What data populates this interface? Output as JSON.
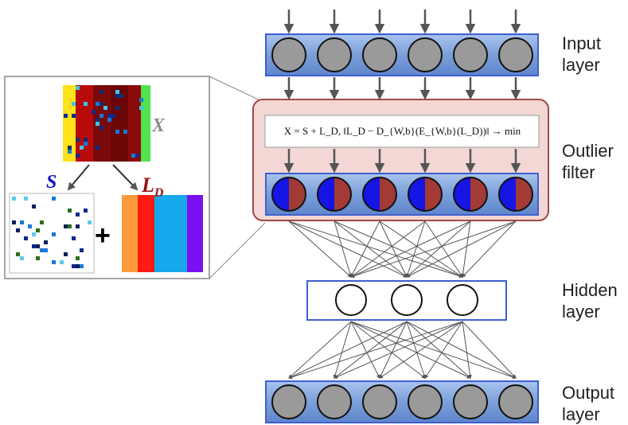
{
  "labels": {
    "input": "Input\nlayer",
    "outlier": "Outlier\nfilter",
    "hidden": "Hidden\nlayer",
    "output": "Output\nlayer"
  },
  "formula": "X = S + L_D, ‖L_D − D_{W,b}(E_{W,b}(L_D))‖ → min",
  "inset": {
    "x_label": "X",
    "s_label": "S",
    "ld_label": "L",
    "ld_sub": "D",
    "plus": "+"
  },
  "layers": {
    "input_nodes": 6,
    "filter_nodes": 6,
    "hidden_nodes": 3,
    "output_nodes": 6
  },
  "colors": {
    "layer_fill": "#7b9fd8",
    "layer_border": "#3f5fd0",
    "node_gray": "#9a9a9a",
    "node_blue": "#1515e6",
    "node_brown": "#a23a36",
    "filter_bg": "#f3d7d4",
    "filter_border": "#a14a46",
    "arrow": "#555555",
    "x_color": "#8a8a8a",
    "s_color": "#1212c8",
    "ld_color": "#9a1111"
  },
  "ld_stripes": [
    "#ff9a3c",
    "#ff1a12",
    "#18a8ec",
    "#18a8ec",
    "#7a10f0"
  ],
  "x_matrix_stripes": [
    "#ffe21a",
    "#b80a0a",
    "#7a0a0a",
    "#6b0606",
    "#8b0a0a",
    "#52e24a"
  ]
}
